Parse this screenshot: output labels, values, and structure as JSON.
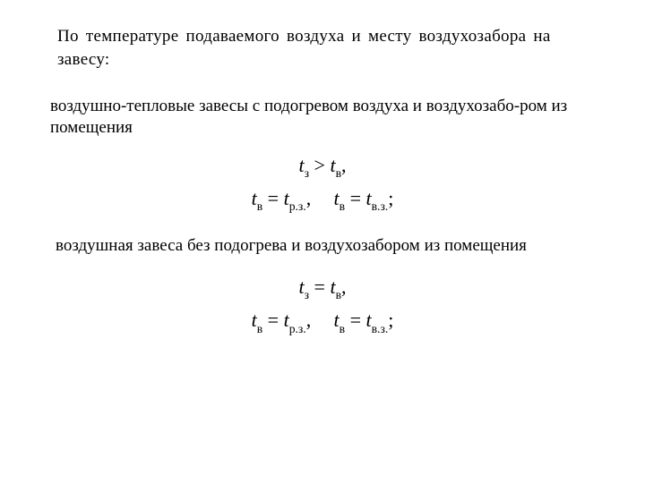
{
  "text_color": "#000000",
  "background_color": "#ffffff",
  "heading": "По температуре подаваемого воздуха и месту воздухозабора на завесу:",
  "section1": {
    "para": "воздушно-тепловые завесы с подогревом воздуха и воздухозабо-ром из помещения",
    "eq": {
      "line1": {
        "t_z_var": "t",
        "t_z_sub": "з",
        "rel": ">",
        "t_v_var": "t",
        "t_v_sub": "в",
        "tail": ","
      },
      "line2": {
        "a_var": "t",
        "a_sub": "в",
        "a_eq": "=",
        "b_var": "t",
        "b_sub": "р.з.",
        "b_tail": ",",
        "c_var": "t",
        "c_sub": "в",
        "c_eq": "=",
        "d_var": "t",
        "d_sub": "в.з.",
        "d_tail": ";"
      }
    }
  },
  "section2": {
    "para": "воздушная завеса без подогрева и воздухозабором из помещения",
    "eq": {
      "line1": {
        "t_z_var": "t",
        "t_z_sub": "з",
        "rel": "=",
        "t_v_var": "t",
        "t_v_sub": "в",
        "tail": ","
      },
      "line2": {
        "a_var": "t",
        "a_sub": "в",
        "a_eq": "=",
        "b_var": "t",
        "b_sub": "р.з.",
        "b_tail": ",",
        "c_var": "t",
        "c_sub": "в",
        "c_eq": "=",
        "d_var": "t",
        "d_sub": "в.з.",
        "d_tail": ";"
      }
    }
  }
}
